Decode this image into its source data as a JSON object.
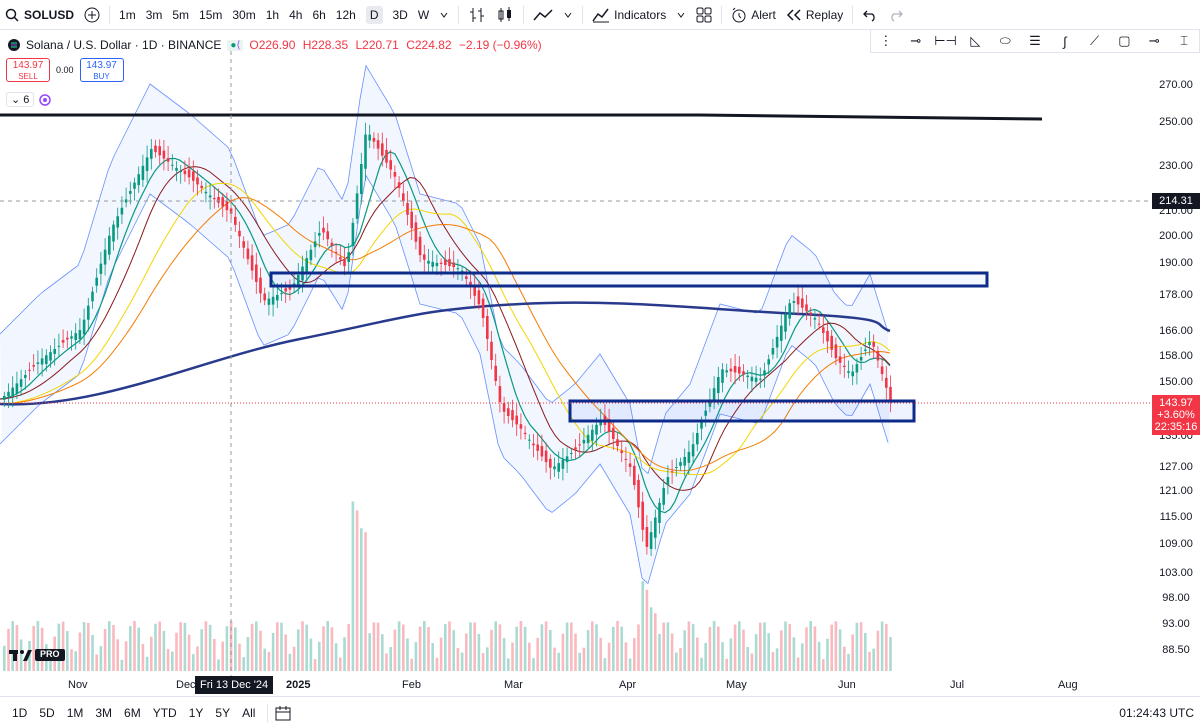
{
  "toolbar": {
    "symbol": "SOLUSD",
    "timeframes": [
      "1m",
      "3m",
      "5m",
      "15m",
      "30m",
      "1h",
      "4h",
      "6h",
      "12h",
      "D",
      "3D",
      "W"
    ],
    "active_timeframe": "D",
    "indicators_label": "Indicators",
    "alert_label": "Alert",
    "replay_label": "Replay"
  },
  "legend": {
    "title": "Solana / U.S. Dollar · 1D · BINANCE",
    "open": "O226.90",
    "high": "H228.35",
    "low": "L220.71",
    "close": "C224.82",
    "change": "−2.19 (−0.96%)"
  },
  "trade": {
    "sell_price": "143.97",
    "sell_label": "SELL",
    "spread": "0.00",
    "buy_price": "143.97",
    "buy_label": "BUY"
  },
  "indicators_count": "6",
  "price_axis": [
    "270.00",
    "250.00",
    "230.00",
    "210.00",
    "200.00",
    "190.00",
    "178.00",
    "166.00",
    "158.00",
    "150.00",
    "135.00",
    "127.00",
    "121.00",
    "115.00",
    "109.00",
    "103.00",
    "98.00",
    "93.00",
    "88.50"
  ],
  "crosshair_price": "214.31",
  "last_price": {
    "price": "143.97",
    "change": "+3.60%",
    "countdown": "22:35:16"
  },
  "time_axis": [
    "Nov",
    "Dec",
    "2025",
    "Feb",
    "Mar",
    "Apr",
    "May",
    "Jun",
    "Jul",
    "Aug"
  ],
  "crosshair_date": "Fri 13 Dec '24",
  "ranges": [
    "1D",
    "5D",
    "1M",
    "3M",
    "6M",
    "YTD",
    "1Y",
    "5Y",
    "All"
  ],
  "clock": "01:24:43 UTC",
  "logo_text": "PRO",
  "colors": {
    "up": "#089981",
    "down": "#f23645",
    "zone": "#0d2b8a",
    "accent": "#2962ff"
  }
}
